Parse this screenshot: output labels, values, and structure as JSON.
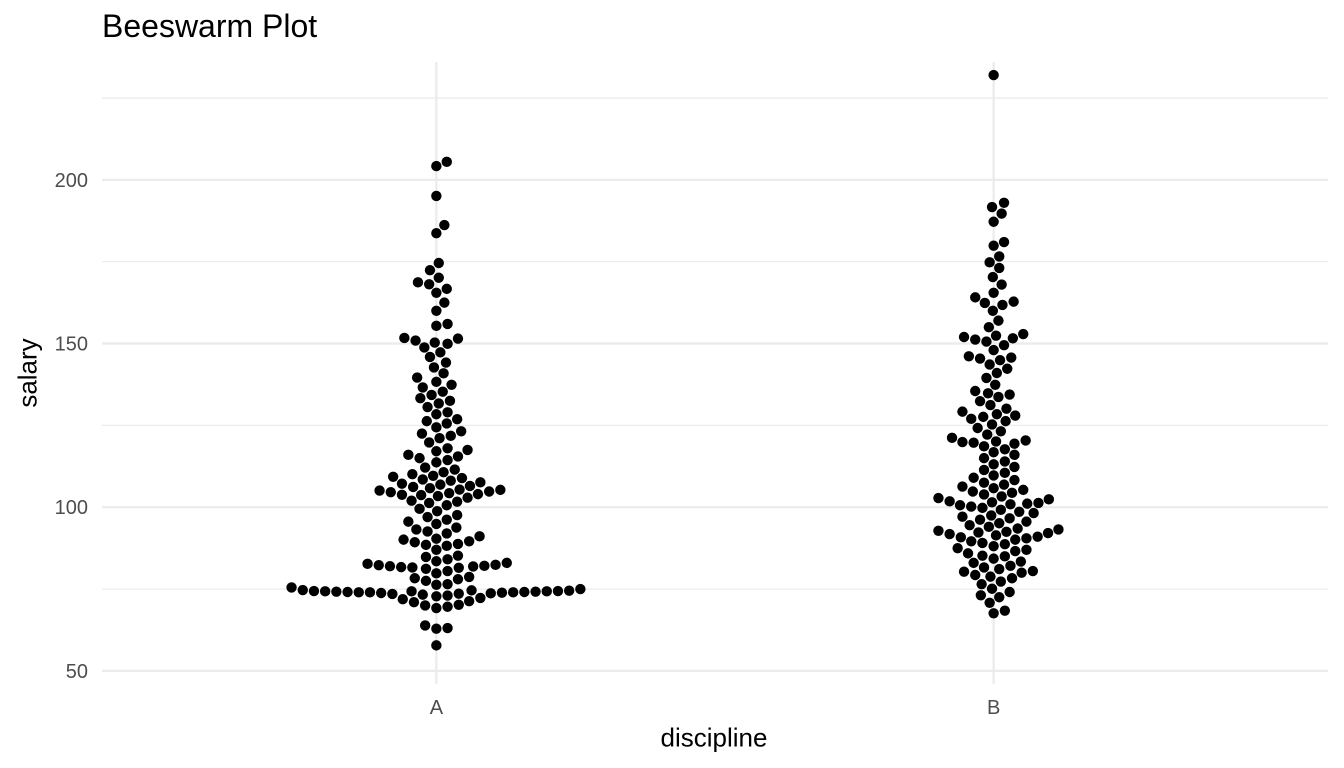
{
  "chart_data": {
    "type": "scatter",
    "subtype": "beeswarm",
    "title": "Beeswarm Plot",
    "xlabel": "discipline",
    "ylabel": "salary",
    "categories": [
      "A",
      "B"
    ],
    "ylim": [
      46,
      236
    ],
    "y_ticks": [
      50,
      100,
      150,
      200
    ],
    "grid": true,
    "point_color": "#000000",
    "grid_color": "#ebebeb",
    "series": [
      {
        "category": "A",
        "values": [
          57.8,
          62.9,
          63.1,
          63.9,
          69.2,
          69.6,
          70.0,
          70.2,
          71.0,
          71.3,
          71.9,
          72.3,
          72.8,
          73.0,
          73.3,
          73.5,
          73.6,
          73.7,
          73.8,
          73.9,
          74.0,
          74.0,
          74.0,
          74.1,
          74.1,
          74.2,
          74.2,
          74.3,
          74.3,
          74.3,
          74.4,
          74.4,
          74.5,
          74.6,
          74.7,
          75.0,
          75.5,
          76.3,
          76.5,
          77.5,
          78.0,
          78.3,
          78.7,
          79.8,
          80.5,
          81.2,
          81.5,
          81.6,
          81.7,
          81.9,
          82.0,
          82.1,
          82.3,
          82.4,
          82.7,
          83.0,
          83.5,
          84.1,
          84.8,
          85.2,
          87.0,
          88.2,
          88.5,
          88.8,
          89.3,
          89.6,
          90.1,
          90.4,
          91.1,
          92.0,
          92.6,
          93.2,
          93.8,
          94.9,
          95.6,
          96.2,
          97.0,
          97.6,
          98.8,
          99.5,
          100.6,
          101.3,
          101.7,
          102.0,
          102.9,
          103.4,
          103.7,
          103.8,
          104.0,
          104.3,
          104.6,
          104.8,
          105.1,
          105.3,
          105.4,
          105.8,
          106.2,
          106.5,
          106.9,
          107.2,
          107.6,
          108.1,
          108.5,
          108.9,
          109.3,
          109.6,
          110.1,
          110.7,
          111.5,
          112.1,
          113.7,
          114.4,
          115.0,
          115.5,
          116.0,
          117.1,
          117.5,
          118.0,
          119.8,
          121.1,
          121.8,
          122.5,
          123.2,
          124.4,
          125.6,
          126.3,
          126.9,
          128.4,
          129.0,
          130.6,
          131.7,
          132.5,
          133.3,
          134.3,
          135.3,
          136.6,
          137.4,
          138.3,
          139.6,
          140.9,
          142.7,
          144.2,
          145.9,
          147.3,
          148.8,
          149.9,
          150.3,
          150.9,
          151.5,
          151.7,
          155.4,
          156.0,
          160.0,
          162.5,
          165.5,
          166.7,
          168.1,
          168.7,
          170.1,
          172.4,
          174.6,
          183.7,
          186.2,
          195.1,
          204.2,
          205.5
        ]
      },
      {
        "category": "B",
        "values": [
          67.6,
          68.4,
          70.8,
          72.5,
          73.1,
          74.1,
          75.1,
          76.5,
          77.3,
          78.3,
          78.8,
          79.3,
          80.0,
          80.3,
          80.5,
          81.1,
          81.6,
          82.1,
          83.0,
          83.4,
          84.3,
          85.0,
          85.2,
          85.9,
          86.6,
          87.0,
          87.5,
          88.1,
          88.7,
          89.1,
          89.6,
          90.1,
          90.5,
          90.8,
          91.0,
          91.4,
          91.8,
          92.1,
          92.3,
          92.5,
          92.8,
          93.2,
          93.5,
          94.0,
          94.5,
          95.1,
          95.6,
          96.2,
          96.6,
          97.1,
          97.5,
          98.2,
          98.6,
          99.2,
          99.8,
          100.2,
          100.6,
          100.9,
          101.1,
          101.3,
          101.5,
          101.8,
          102.4,
          102.8,
          103.3,
          103.9,
          104.4,
          104.8,
          105.3,
          105.8,
          106.3,
          106.9,
          107.5,
          108.3,
          109.0,
          109.7,
          110.5,
          111.4,
          112.3,
          113.1,
          114.0,
          115.0,
          116.0,
          116.8,
          117.7,
          118.6,
          119.4,
          119.7,
          119.9,
          120.1,
          120.4,
          121.2,
          122.2,
          123.2,
          124.2,
          125.3,
          126.3,
          127.0,
          127.6,
          128.0,
          128.4,
          129.2,
          130.1,
          131.2,
          132.4,
          133.7,
          134.4,
          134.8,
          135.5,
          137.4,
          139.5,
          141.0,
          142.3,
          143.6,
          144.9,
          145.4,
          145.7,
          146.1,
          148.0,
          149.5,
          150.6,
          151.2,
          151.6,
          152.0,
          152.4,
          152.9,
          155.0,
          157.0,
          160.0,
          161.8,
          162.4,
          162.8,
          164.1,
          165.5,
          168.0,
          170.3,
          173.1,
          174.8,
          176.6,
          179.9,
          181.0,
          187.2,
          189.7,
          191.7,
          193.0,
          232.0
        ]
      }
    ]
  }
}
